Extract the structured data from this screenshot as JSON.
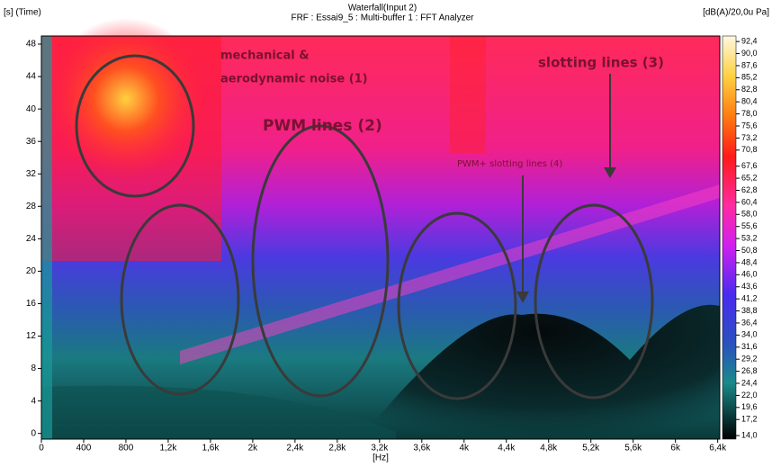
{
  "chart_data": {
    "type": "spectrogram",
    "title": "Waterfall(Input 2)",
    "subtitle": "FRF : Essai9_5 : Multi-buffer 1 : FFT Analyzer",
    "ylabel": "[s] (Time)",
    "xlabel": "[Hz]",
    "colorbar_label": "[dB(A)/20,0u Pa]",
    "xlim": [
      0,
      6420
    ],
    "ylim": [
      -0.7,
      49
    ],
    "xticks": [
      0,
      400,
      800,
      {
        "value": 1200,
        "label": "1,2k"
      },
      {
        "value": 1600,
        "label": "1,6k"
      },
      {
        "value": 2000,
        "label": "2k"
      },
      {
        "value": 2400,
        "label": "2,4k"
      },
      {
        "value": 2800,
        "label": "2,8k"
      },
      {
        "value": 3200,
        "label": "3,2k"
      },
      {
        "value": 3600,
        "label": "3,6k"
      },
      {
        "value": 4000,
        "label": "4k"
      },
      {
        "value": 4400,
        "label": "4,4k"
      },
      {
        "value": 4800,
        "label": "4,8k"
      },
      {
        "value": 5200,
        "label": "5,2k"
      },
      {
        "value": 5600,
        "label": "5,6k"
      },
      {
        "value": 6000,
        "label": "6k"
      },
      {
        "value": 6400,
        "label": "6,4k"
      }
    ],
    "yticks": [
      0,
      4,
      8,
      12,
      16,
      20,
      24,
      28,
      32,
      36,
      40,
      44,
      48
    ],
    "colorlim": [
      13.3,
      93.5
    ],
    "colorticks": [
      {
        "value": 92.4,
        "label": "92,4"
      },
      {
        "value": 90.0,
        "label": "90,0"
      },
      {
        "value": 87.6,
        "label": "87,6"
      },
      {
        "value": 85.2,
        "label": "85,2"
      },
      {
        "value": 82.8,
        "label": "82,8"
      },
      {
        "value": 80.4,
        "label": "80,4"
      },
      {
        "value": 78.0,
        "label": "78,0"
      },
      {
        "value": 75.6,
        "label": "75,6"
      },
      {
        "value": 73.2,
        "label": "73,2"
      },
      {
        "value": 70.8,
        "label": "70,8"
      },
      {
        "value": 67.6,
        "label": "67,6"
      },
      {
        "value": 65.2,
        "label": "65,2"
      },
      {
        "value": 62.8,
        "label": "62,8"
      },
      {
        "value": 60.4,
        "label": "60,4"
      },
      {
        "value": 58.0,
        "label": "58,0"
      },
      {
        "value": 55.6,
        "label": "55,6"
      },
      {
        "value": 53.2,
        "label": "53,2"
      },
      {
        "value": 50.8,
        "label": "50,8"
      },
      {
        "value": 48.4,
        "label": "48,4"
      },
      {
        "value": 46.0,
        "label": "46,0"
      },
      {
        "value": 43.6,
        "label": "43,6"
      },
      {
        "value": 41.2,
        "label": "41,2"
      },
      {
        "value": 38.8,
        "label": "38,8"
      },
      {
        "value": 36.4,
        "label": "36,4"
      },
      {
        "value": 34.0,
        "label": "34,0"
      },
      {
        "value": 31.6,
        "label": "31,6"
      },
      {
        "value": 29.2,
        "label": "29,2"
      },
      {
        "value": 26.8,
        "label": "26,8"
      },
      {
        "value": 24.4,
        "label": "24,4"
      },
      {
        "value": 22.0,
        "label": "22,0"
      },
      {
        "value": 19.6,
        "label": "19,6"
      },
      {
        "value": 17.2,
        "label": "17,2"
      },
      {
        "value": 14.0,
        "label": "14,0"
      }
    ],
    "annotations": [
      "mechanical &",
      "aerodynamic noise (1)",
      "PWM lines (2)",
      "slotting lines (3)",
      "PWM+ slotting lines (4)"
    ]
  }
}
